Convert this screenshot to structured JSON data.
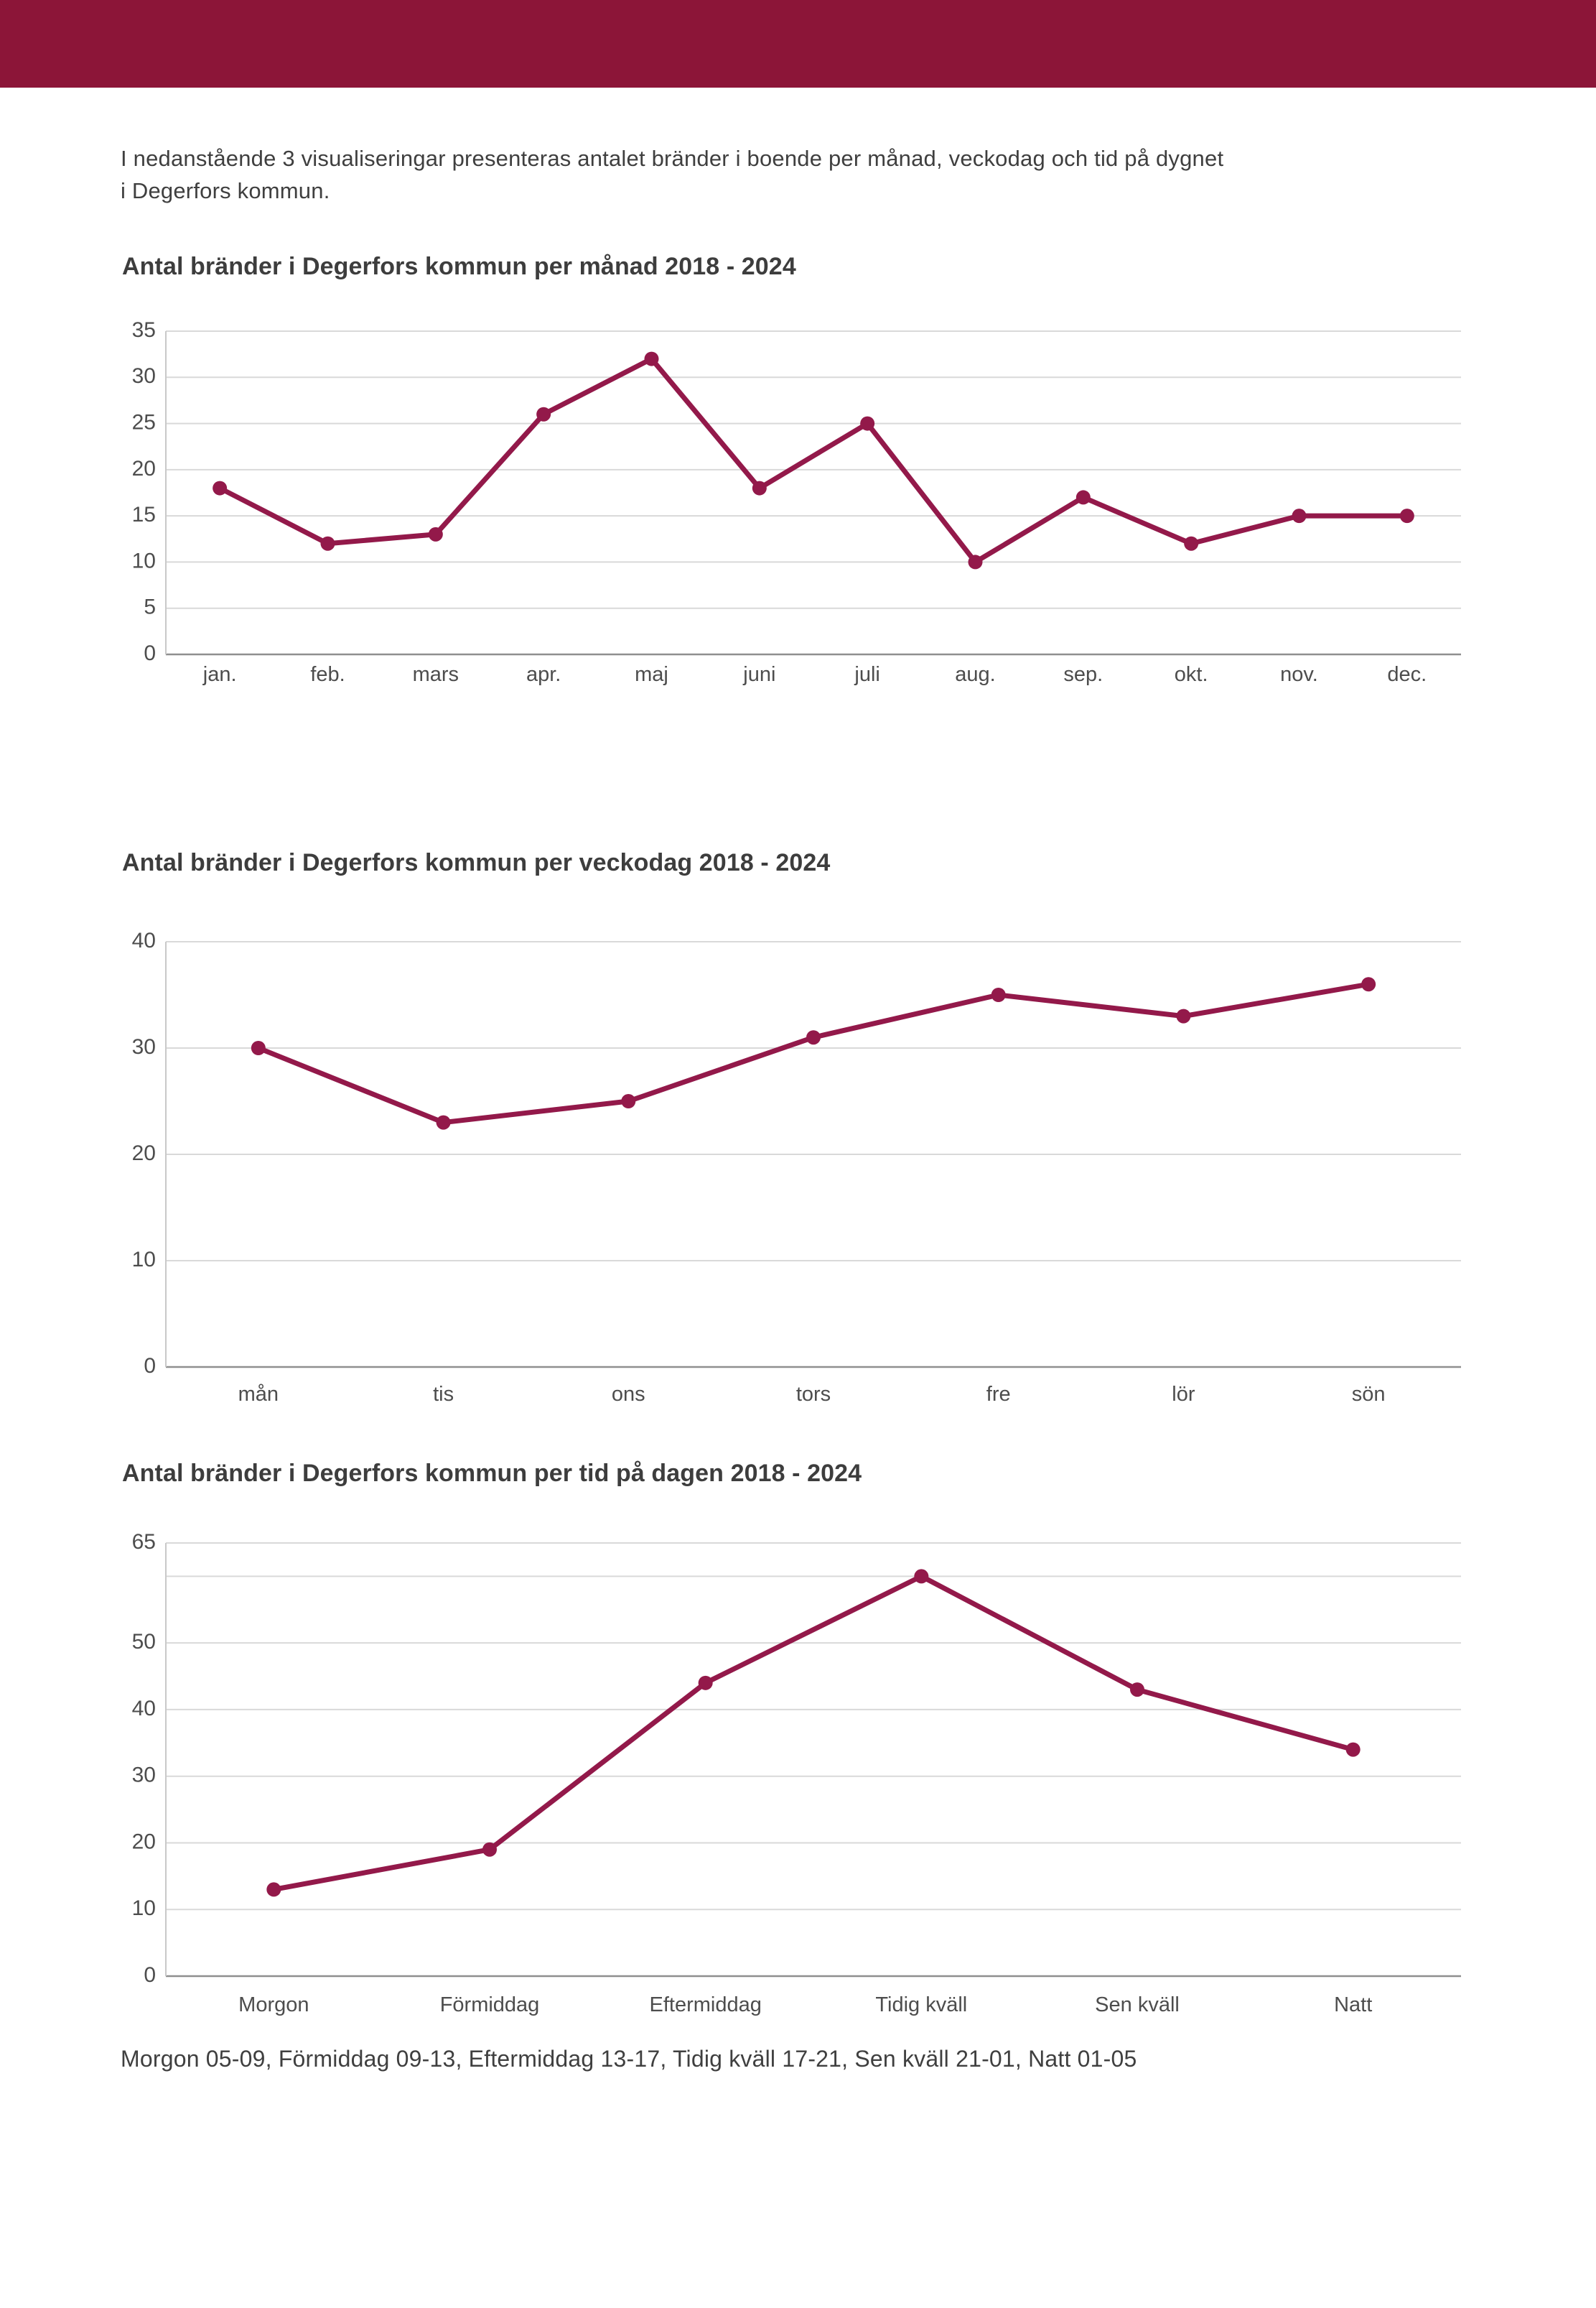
{
  "page": {
    "intro_line1": "I nedanstående 3 visualiseringar presenteras antalet bränder i boende per månad, veckodag och tid på dygnet",
    "intro_line2": "i Degerfors kommun.",
    "footer": "Morgon 05-09, Förmiddag 09-13, Eftermiddag 13-17, Tidig kväll 17-21, Sen kväll 21-01, Natt 01-05"
  },
  "colors": {
    "banner": "#8C1538",
    "line": "#93194A",
    "grid": "#D9D9D9",
    "axis_left": "#C9C9C9",
    "axis_bottom": "#8F8F8F",
    "tick_text": "#4D4D4D"
  },
  "chart_data": [
    {
      "type": "line",
      "title": "Antal bränder i Degerfors kommun per månad 2018 - 2024",
      "categories": [
        "jan.",
        "feb.",
        "mars",
        "apr.",
        "maj",
        "juni",
        "juli",
        "aug.",
        "sep.",
        "okt.",
        "nov.",
        "dec."
      ],
      "values": [
        18,
        12,
        13,
        26,
        32,
        18,
        25,
        10,
        17,
        12,
        15,
        15
      ],
      "xlabel": "",
      "ylabel": "",
      "ylim": [
        0,
        35
      ],
      "grid": true,
      "legend": "none",
      "yticks": [
        {
          "value": 0,
          "label": "0"
        },
        {
          "value": 5,
          "label": "5"
        },
        {
          "value": 10,
          "label": "10"
        },
        {
          "value": 15,
          "label": "15"
        },
        {
          "value": 20,
          "label": "20"
        },
        {
          "value": 25,
          "label": "25"
        },
        {
          "value": 30,
          "label": "30"
        },
        {
          "value": 35,
          "label": "35"
        }
      ]
    },
    {
      "type": "line",
      "title": "Antal bränder i Degerfors kommun per veckodag 2018 - 2024",
      "categories": [
        "mån",
        "tis",
        "ons",
        "tors",
        "fre",
        "lör",
        "sön"
      ],
      "values": [
        30,
        23,
        25,
        31,
        35,
        33,
        36
      ],
      "xlabel": "",
      "ylabel": "",
      "ylim": [
        0,
        40
      ],
      "grid": true,
      "legend": "none",
      "yticks": [
        {
          "value": 0,
          "label": "0"
        },
        {
          "value": 10,
          "label": "10"
        },
        {
          "value": 20,
          "label": "20"
        },
        {
          "value": 30,
          "label": "30"
        },
        {
          "value": 40,
          "label": "40"
        }
      ]
    },
    {
      "type": "line",
      "title": "Antal bränder i Degerfors kommun per tid på dagen 2018 - 2024",
      "categories": [
        "Morgon",
        "Förmiddag",
        "Eftermiddag",
        "Tidig kväll",
        "Sen kväll",
        "Natt"
      ],
      "values": [
        13,
        19,
        44,
        60,
        43,
        34
      ],
      "xlabel": "",
      "ylabel": "",
      "ylim": [
        0,
        65
      ],
      "grid": true,
      "legend": "none",
      "yticks": [
        {
          "value": 0,
          "label": "0"
        },
        {
          "value": 10,
          "label": "10"
        },
        {
          "value": 20,
          "label": "20"
        },
        {
          "value": 30,
          "label": "30"
        },
        {
          "value": 40,
          "label": "40"
        },
        {
          "value": 50,
          "label": "50"
        },
        {
          "value": 60,
          "label": ""
        },
        {
          "value": 65,
          "label": "65"
        }
      ]
    }
  ]
}
